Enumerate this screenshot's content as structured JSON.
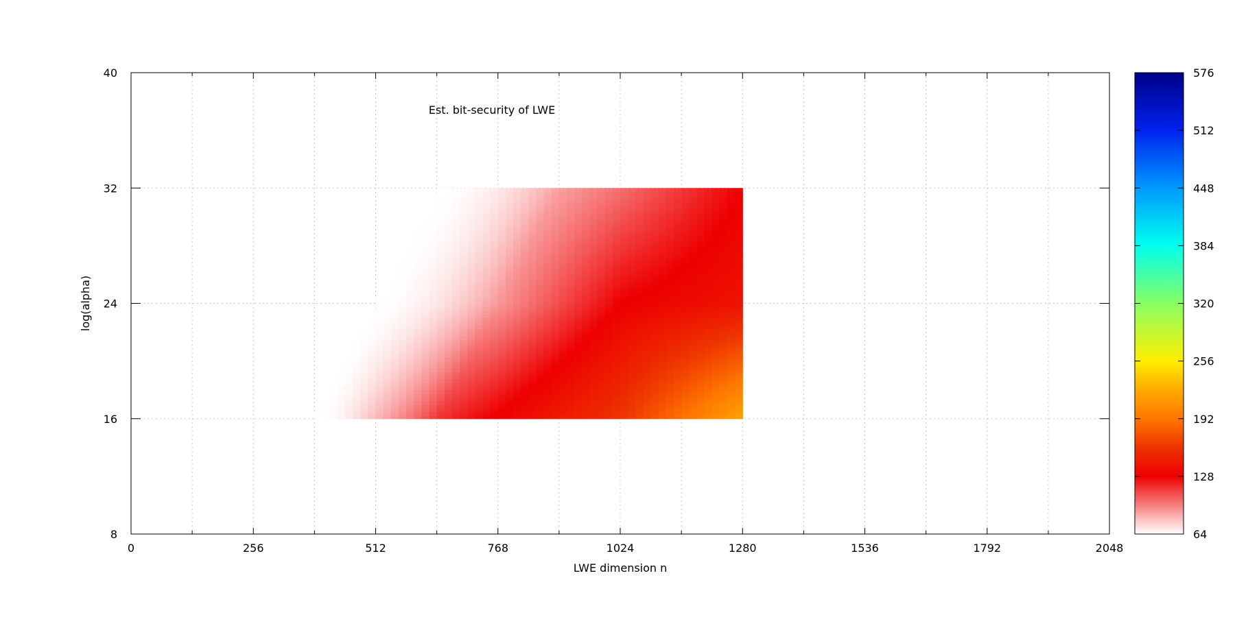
{
  "chart_data": {
    "type": "heatmap",
    "title": "Est. bit-security of LWE",
    "xlabel": "LWE dimension n",
    "ylabel": "log(alpha)",
    "xlim": [
      0,
      2048
    ],
    "ylim": [
      8,
      40
    ],
    "x_ticks": [
      "0",
      "256",
      "512",
      "768",
      "1024",
      "1280",
      "1536",
      "1792",
      "2048"
    ],
    "y_ticks": [
      "8",
      "16",
      "24",
      "32",
      "40"
    ],
    "x_tick_values": [
      0,
      256,
      512,
      768,
      1024,
      1280,
      1536,
      1792,
      2048
    ],
    "y_tick_values": [
      8,
      16,
      24,
      32,
      40
    ],
    "grid": true,
    "colorbar": {
      "range": [
        64,
        576
      ],
      "ticks": [
        "64",
        "128",
        "192",
        "256",
        "320",
        "384",
        "448",
        "512",
        "576"
      ],
      "tick_values": [
        64,
        128,
        192,
        256,
        320,
        384,
        448,
        512,
        576
      ],
      "stops": [
        {
          "value": 64,
          "color": "#ffffff"
        },
        {
          "value": 128,
          "color": "#ee0000"
        },
        {
          "value": 160,
          "color": "#ee3300"
        },
        {
          "value": 192,
          "color": "#ff7700"
        },
        {
          "value": 224,
          "color": "#ffaa00"
        },
        {
          "value": 256,
          "color": "#ffee00"
        },
        {
          "value": 320,
          "color": "#88ff66"
        },
        {
          "value": 384,
          "color": "#00ffee"
        },
        {
          "value": 448,
          "color": "#0099ff"
        },
        {
          "value": 512,
          "color": "#0022ee"
        },
        {
          "value": 576,
          "color": "#000088"
        }
      ]
    },
    "data_region": {
      "n_range": [
        384,
        1280
      ],
      "log_alpha_range": [
        16,
        32
      ]
    },
    "samples": [
      {
        "n": 384,
        "log_alpha": 16,
        "bits": 64
      },
      {
        "n": 512,
        "log_alpha": 16,
        "bits": 100
      },
      {
        "n": 768,
        "log_alpha": 16,
        "bits": 130
      },
      {
        "n": 1024,
        "log_alpha": 16,
        "bits": 160
      },
      {
        "n": 1280,
        "log_alpha": 16,
        "bits": 220
      },
      {
        "n": 512,
        "log_alpha": 24,
        "bits": 64
      },
      {
        "n": 768,
        "log_alpha": 24,
        "bits": 90
      },
      {
        "n": 1024,
        "log_alpha": 24,
        "bits": 128
      },
      {
        "n": 1280,
        "log_alpha": 24,
        "bits": 140
      },
      {
        "n": 640,
        "log_alpha": 32,
        "bits": 64
      },
      {
        "n": 768,
        "log_alpha": 32,
        "bits": 75
      },
      {
        "n": 1024,
        "log_alpha": 32,
        "bits": 100
      },
      {
        "n": 1280,
        "log_alpha": 32,
        "bits": 128
      }
    ]
  }
}
